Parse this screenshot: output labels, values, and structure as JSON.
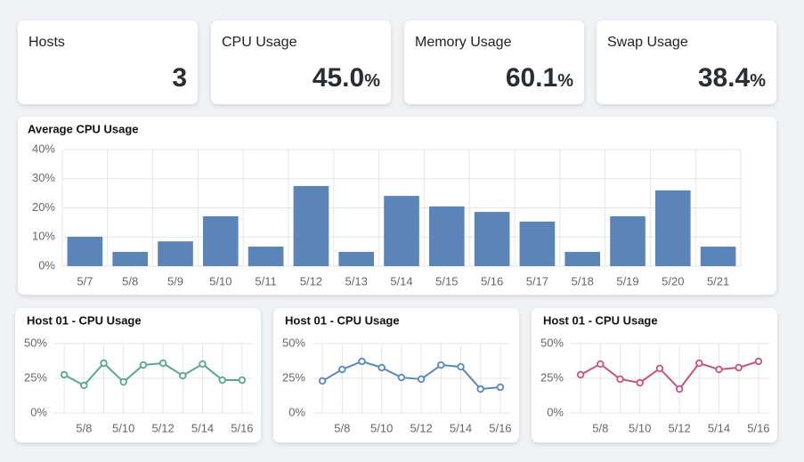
{
  "stats": [
    {
      "label": "Hosts",
      "value": "3"
    },
    {
      "label": "CPU Usage",
      "value": "45.0",
      "unit": "%"
    },
    {
      "label": "Memory Usage",
      "value": "60.1",
      "unit": "%"
    },
    {
      "label": "Swap Usage",
      "value": "38.4",
      "unit": "%"
    }
  ],
  "chart_data": [
    {
      "type": "bar",
      "title": "Average CPU Usage",
      "color": "#5b84b8",
      "grid": true,
      "categories": [
        "5/7",
        "5/8",
        "5/9",
        "5/10",
        "5/11",
        "5/12",
        "5/13",
        "5/14",
        "5/15",
        "5/16",
        "5/17",
        "5/18",
        "5/19",
        "5/20",
        "5/21"
      ],
      "values": [
        10.1,
        4.9,
        8.5,
        17.1,
        6.7,
        27.5,
        4.9,
        24.1,
        20.5,
        18.6,
        15.3,
        4.9,
        17.1,
        26,
        6.7
      ],
      "ylim": [
        0,
        40
      ],
      "yticks": [
        {
          "value": 0,
          "label": "0%"
        },
        {
          "value": 10,
          "label": "10%"
        },
        {
          "value": 20,
          "label": "20%"
        },
        {
          "value": 30,
          "label": "30%"
        },
        {
          "value": 40,
          "label": "40%"
        }
      ]
    },
    {
      "type": "line",
      "title": "Host 01 - CPU Usage",
      "color": "#5aa88a",
      "grid": true,
      "categories": [
        null,
        "5/8",
        null,
        "5/10",
        null,
        "5/12",
        null,
        "5/14",
        null,
        "5/16"
      ],
      "values": [
        27.6,
        19.9,
        35.9,
        22.4,
        34.6,
        35.9,
        26.9,
        35.3,
        23.7,
        23.7
      ],
      "ylim": [
        0,
        50
      ],
      "yticks": [
        {
          "value": 0,
          "label": "0%"
        },
        {
          "value": 25,
          "label": "25%"
        },
        {
          "value": 50,
          "label": "50%"
        }
      ]
    },
    {
      "type": "line",
      "title": "Host 01 - CPU Usage",
      "color": "#5b87bf",
      "grid": true,
      "categories": [
        null,
        "5/8",
        null,
        "5/10",
        null,
        "5/12",
        null,
        "5/14",
        null,
        "5/16"
      ],
      "values": [
        23.1,
        31.4,
        37.2,
        32.7,
        25.6,
        24.4,
        34.6,
        33.3,
        17.3,
        18.6
      ],
      "ylim": [
        0,
        50
      ],
      "yticks": [
        {
          "value": 0,
          "label": "0%"
        },
        {
          "value": 25,
          "label": "25%"
        },
        {
          "value": 50,
          "label": "50%"
        }
      ]
    },
    {
      "type": "line",
      "title": "Host 01 - CPU Usage",
      "color": "#c9537d",
      "grid": true,
      "categories": [
        null,
        "5/8",
        null,
        "5/10",
        null,
        "5/12",
        null,
        "5/14",
        null,
        "5/16"
      ],
      "values": [
        27.6,
        35.3,
        24.4,
        21.8,
        32.1,
        17.3,
        35.9,
        31.4,
        32.7,
        37.2
      ],
      "ylim": [
        0,
        50
      ],
      "yticks": [
        {
          "value": 0,
          "label": "0%"
        },
        {
          "value": 25,
          "label": "25%"
        },
        {
          "value": 50,
          "label": "50%"
        }
      ]
    }
  ]
}
